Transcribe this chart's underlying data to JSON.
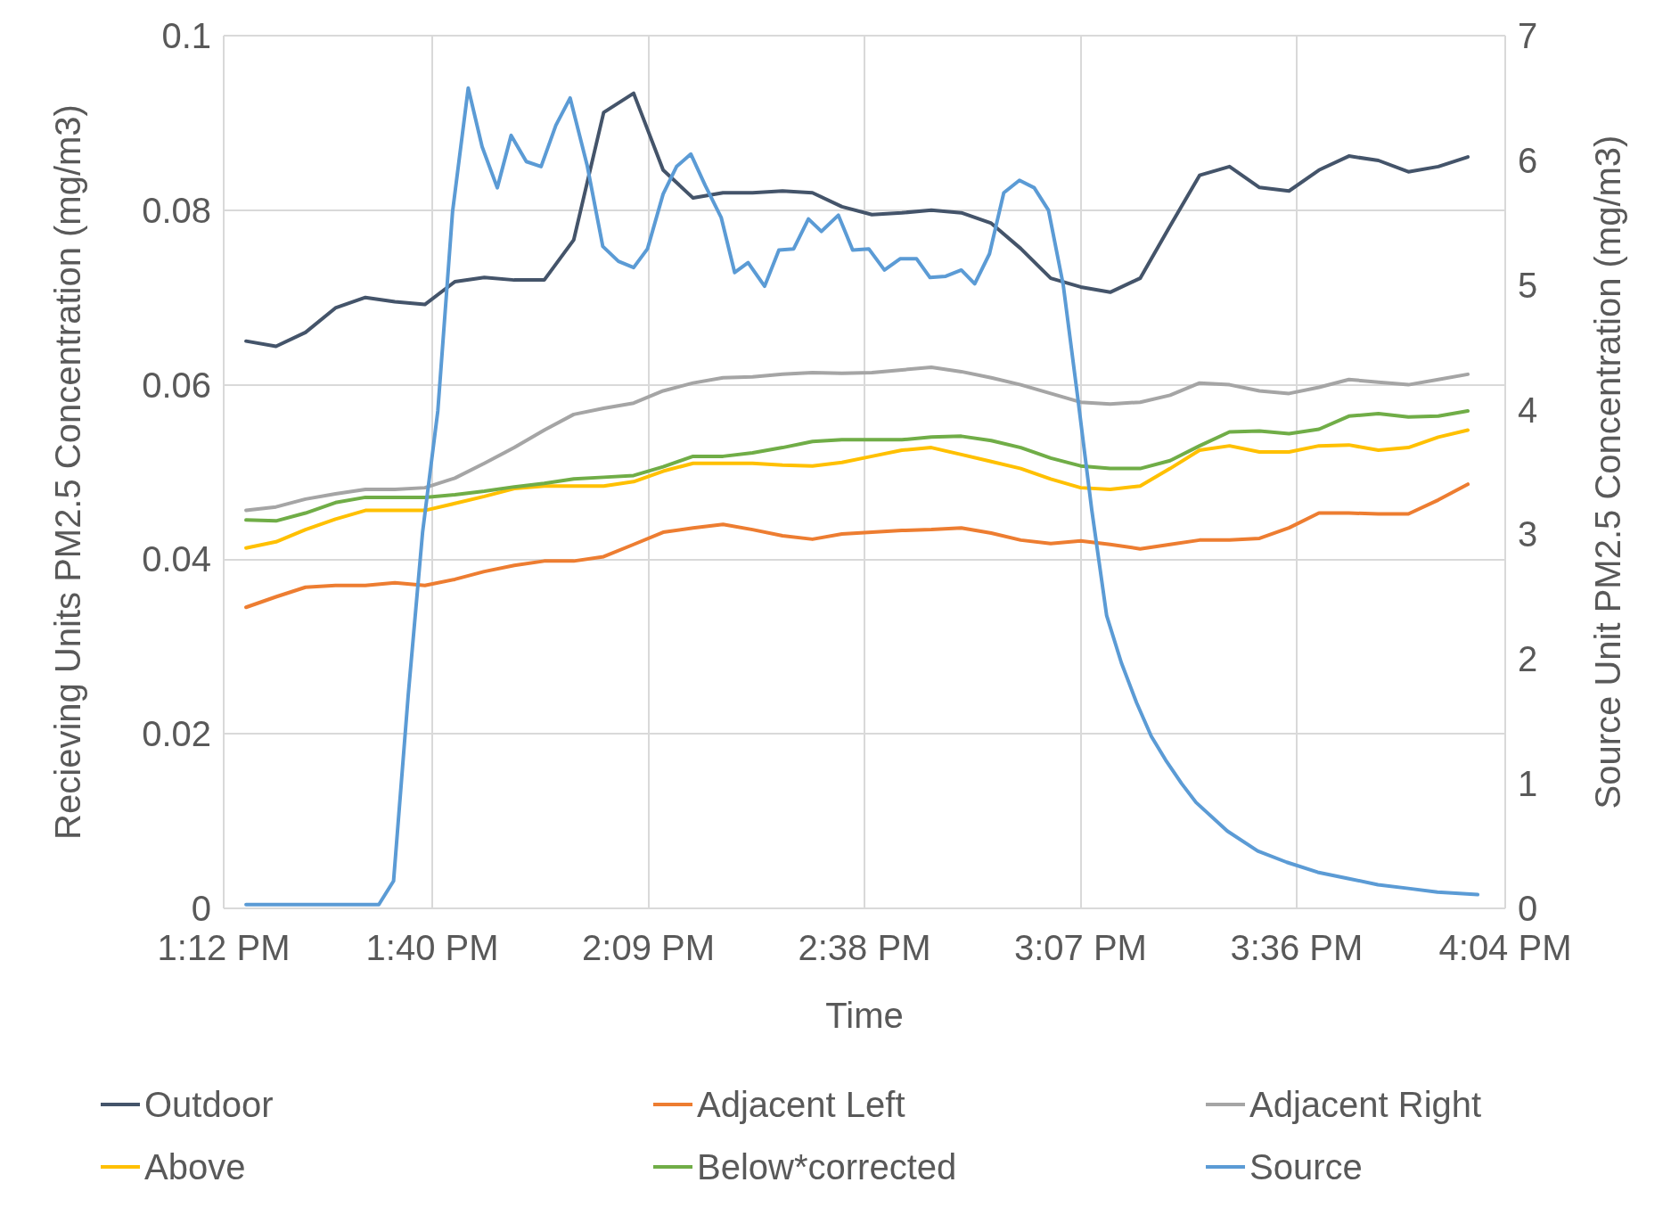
{
  "chart_data": {
    "type": "line",
    "xlabel": "Time",
    "ylabel": "Recieving Units PM2.5 Concentration (mg/m3)",
    "y2label": "Source Unit PM2.5 Concentration (mg/m3)",
    "x": [
      13.25,
      13.317,
      13.383,
      13.45,
      13.517,
      13.583,
      13.65,
      13.717,
      13.783,
      13.85,
      13.917,
      13.983,
      14.05,
      14.117,
      14.183,
      14.25,
      14.317,
      14.383,
      14.45,
      14.517,
      14.583,
      14.65,
      14.717,
      14.783,
      14.85,
      14.917,
      14.983,
      15.05,
      15.117,
      15.183,
      15.25,
      15.317,
      15.383,
      15.45,
      15.517,
      15.583,
      15.65,
      15.717,
      15.783,
      15.85,
      15.917,
      15.983
    ],
    "xlim": [
      13.2,
      16.0667
    ],
    "xticks": [
      {
        "value": 13.2,
        "label": "1:12 PM"
      },
      {
        "value": 13.6667,
        "label": "1:40 PM"
      },
      {
        "value": 14.15,
        "label": "2:09 PM"
      },
      {
        "value": 14.6333,
        "label": "2:38 PM"
      },
      {
        "value": 15.1167,
        "label": "3:07 PM"
      },
      {
        "value": 15.6,
        "label": "3:36 PM"
      },
      {
        "value": 16.0667,
        "label": "4:04 PM"
      }
    ],
    "ylim": [
      0,
      0.1
    ],
    "yticks": [
      0,
      0.02,
      0.04,
      0.06,
      0.08,
      0.1
    ],
    "y2lim": [
      0,
      7
    ],
    "y2ticks": [
      0,
      1,
      2,
      3,
      4,
      5,
      6,
      7
    ],
    "grid": true,
    "legend": "bottom",
    "marker": "none",
    "line_style": "solid",
    "series": [
      {
        "name": "Outdoor",
        "color": "#44546a",
        "values": [
          0.065,
          0.0644,
          0.066,
          0.0688,
          0.07,
          0.0695,
          0.0692,
          0.0718,
          0.0723,
          0.072,
          0.072,
          0.0766,
          0.0912,
          0.0934,
          0.0846,
          0.0814,
          0.082,
          0.082,
          0.0822,
          0.082,
          0.0804,
          0.0795,
          0.0797,
          0.08,
          0.0797,
          0.0785,
          0.0756,
          0.0722,
          0.0712,
          0.0706,
          0.0722,
          0.0782,
          0.084,
          0.085,
          0.0826,
          0.0822,
          0.0846,
          0.0862,
          0.0857,
          0.0844,
          0.085,
          0.0861
        ]
      },
      {
        "name": "Adjacent Left",
        "color": "#ed7d31",
        "values": [
          0.0345,
          0.0357,
          0.0368,
          0.037,
          0.037,
          0.0373,
          0.037,
          0.0377,
          0.0386,
          0.0393,
          0.0398,
          0.0398,
          0.0403,
          0.0417,
          0.0431,
          0.0436,
          0.044,
          0.0434,
          0.0427,
          0.0423,
          0.0429,
          0.0431,
          0.0433,
          0.0434,
          0.0436,
          0.043,
          0.0422,
          0.0418,
          0.0421,
          0.0417,
          0.0412,
          0.0417,
          0.0422,
          0.0422,
          0.0424,
          0.0436,
          0.0453,
          0.0453,
          0.0452,
          0.0452,
          0.0468,
          0.0486
        ]
      },
      {
        "name": "Adjacent Right",
        "color": "#a5a5a5",
        "values": [
          0.0456,
          0.046,
          0.0469,
          0.0475,
          0.048,
          0.048,
          0.0482,
          0.0493,
          0.051,
          0.0528,
          0.0548,
          0.0566,
          0.0573,
          0.0579,
          0.0593,
          0.0602,
          0.0608,
          0.0609,
          0.0612,
          0.0614,
          0.0613,
          0.0614,
          0.0617,
          0.062,
          0.0615,
          0.0608,
          0.06,
          0.059,
          0.058,
          0.0578,
          0.058,
          0.0588,
          0.0602,
          0.06,
          0.0593,
          0.059,
          0.0597,
          0.0606,
          0.0603,
          0.06,
          0.0606,
          0.0612
        ]
      },
      {
        "name": "Above",
        "color": "#ffc000",
        "values": [
          0.0413,
          0.042,
          0.0434,
          0.0446,
          0.0456,
          0.0456,
          0.0456,
          0.0464,
          0.0472,
          0.0481,
          0.0484,
          0.0484,
          0.0484,
          0.0489,
          0.0501,
          0.051,
          0.051,
          0.051,
          0.0508,
          0.0507,
          0.0511,
          0.0518,
          0.0525,
          0.0528,
          0.052,
          0.0512,
          0.0504,
          0.0492,
          0.0482,
          0.048,
          0.0484,
          0.0504,
          0.0525,
          0.053,
          0.0523,
          0.0523,
          0.053,
          0.0531,
          0.0525,
          0.0528,
          0.054,
          0.0548
        ]
      },
      {
        "name": "Below*corrected",
        "color": "#70ad47",
        "values": [
          0.0445,
          0.0444,
          0.0453,
          0.0465,
          0.0471,
          0.0471,
          0.0471,
          0.0474,
          0.0478,
          0.0483,
          0.0487,
          0.0492,
          0.0494,
          0.0496,
          0.0506,
          0.0518,
          0.0518,
          0.0522,
          0.0528,
          0.0535,
          0.0537,
          0.0537,
          0.0537,
          0.054,
          0.0541,
          0.0536,
          0.0528,
          0.0516,
          0.0507,
          0.0504,
          0.0504,
          0.0513,
          0.053,
          0.0546,
          0.0547,
          0.0544,
          0.0549,
          0.0564,
          0.0567,
          0.0563,
          0.0564,
          0.057
        ]
      },
      {
        "name": "Source",
        "color": "#5b9bd5",
        "axis": "y2",
        "x": [
          13.25,
          13.429,
          13.547,
          13.58,
          13.613,
          13.645,
          13.679,
          13.712,
          13.747,
          13.778,
          13.812,
          13.843,
          13.877,
          13.91,
          13.943,
          13.975,
          14.013,
          14.048,
          14.083,
          14.117,
          14.148,
          14.183,
          14.213,
          14.245,
          14.277,
          14.313,
          14.343,
          14.373,
          14.41,
          14.442,
          14.475,
          14.508,
          14.537,
          14.575,
          14.607,
          14.643,
          14.678,
          14.713,
          14.75,
          14.78,
          14.815,
          14.85,
          14.88,
          14.913,
          14.945,
          14.98,
          15.013,
          15.045,
          15.078,
          15.11,
          15.142,
          15.175,
          15.208,
          15.242,
          15.275,
          15.307,
          15.343,
          15.375,
          15.445,
          15.513,
          15.578,
          15.647,
          15.715,
          15.782,
          15.85,
          15.915,
          16.005
        ],
        "values": [
          0.03,
          0.03,
          0.03,
          0.22,
          1.72,
          3.02,
          3.99,
          5.59,
          6.58,
          6.11,
          5.78,
          6.2,
          5.99,
          5.95,
          6.28,
          6.5,
          5.96,
          5.31,
          5.19,
          5.14,
          5.29,
          5.73,
          5.95,
          6.05,
          5.8,
          5.54,
          5.1,
          5.18,
          4.99,
          5.28,
          5.29,
          5.53,
          5.43,
          5.56,
          5.28,
          5.29,
          5.12,
          5.21,
          5.21,
          5.06,
          5.07,
          5.12,
          5.01,
          5.25,
          5.74,
          5.84,
          5.78,
          5.6,
          5.0,
          4.11,
          3.19,
          2.35,
          1.97,
          1.65,
          1.38,
          1.19,
          1.0,
          0.85,
          0.62,
          0.46,
          0.37,
          0.29,
          0.24,
          0.19,
          0.16,
          0.13,
          0.11
        ]
      }
    ]
  }
}
